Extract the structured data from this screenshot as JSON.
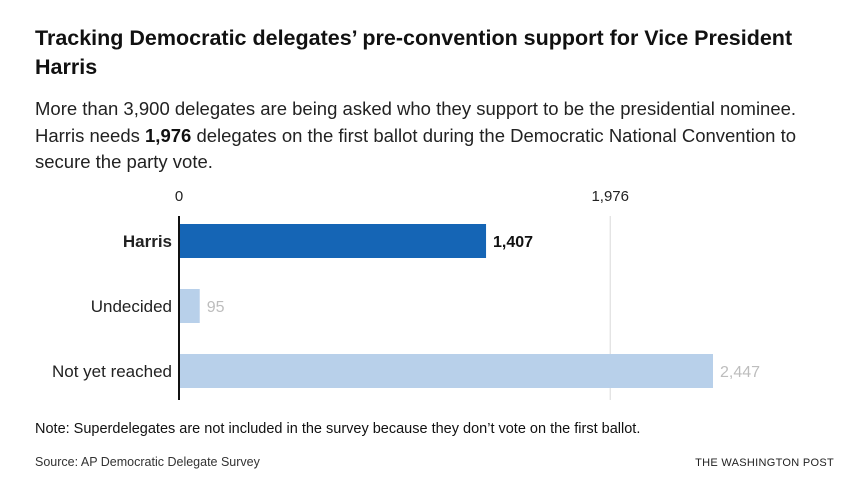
{
  "header": {
    "title": "Tracking Democratic delegates’ pre-convention support for Vice President Harris",
    "subtitle_part1": "More than 3,900 delegates are being asked who they support to be the presidential nominee. Harris needs ",
    "subtitle_bold": "1,976",
    "subtitle_part2": " delegates on the first ballot during the Democratic National Convention to secure the party vote."
  },
  "chart_data": {
    "type": "bar",
    "orientation": "horizontal",
    "title": "Tracking Democratic delegates’ pre-convention support for Vice President Harris",
    "categories": [
      "Harris",
      "Undecided",
      "Not yet reached"
    ],
    "values": [
      1407,
      95,
      2447
    ],
    "value_labels": [
      "1,407",
      "95",
      "2,447"
    ],
    "highlight": [
      true,
      false,
      false
    ],
    "xlim": [
      0,
      2447
    ],
    "ticks": [
      {
        "value": 0,
        "label": "0"
      },
      {
        "value": 1976,
        "label": "1,976"
      }
    ],
    "threshold_line": 1976,
    "xlabel": "",
    "ylabel": "",
    "grid": false,
    "colors": {
      "highlight": "#1565b5",
      "muted": "#b8d0ea",
      "axis": "#111111",
      "threshold": "#d9d9d9",
      "label_highlight": "#111111",
      "label_muted": "#bdbdbd"
    }
  },
  "footer": {
    "note": "Note: Superdelegates are not included in the survey because they don’t vote on the first ballot.",
    "source": "Source: AP Democratic Delegate Survey",
    "credit": "THE WASHINGTON POST"
  }
}
